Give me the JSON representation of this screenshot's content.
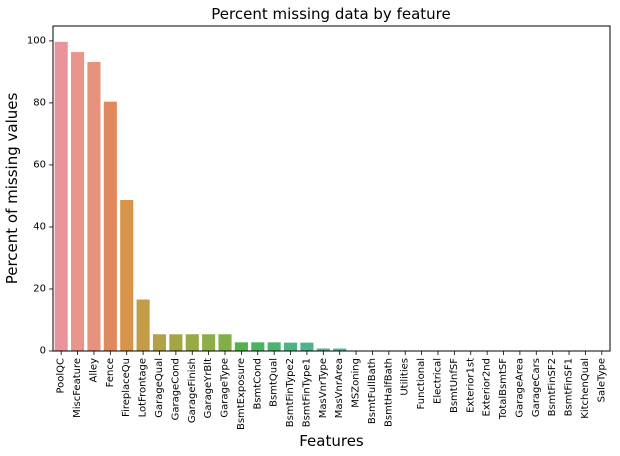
{
  "chart_data": {
    "type": "bar",
    "title": "Percent missing data by feature",
    "xlabel": "Features",
    "ylabel": "Percent of missing values",
    "ylim": [
      0,
      104.8
    ],
    "yticks": [
      0,
      20,
      40,
      60,
      80,
      100
    ],
    "grid": false,
    "categories": [
      "PoolQC",
      "MiscFeature",
      "Alley",
      "Fence",
      "FireplaceQu",
      "LotFrontage",
      "GarageQual",
      "GarageCond",
      "GarageFinish",
      "GarageYrBlt",
      "GarageType",
      "BsmtExposure",
      "BsmtCond",
      "BsmtQual",
      "BsmtFinType2",
      "BsmtFinType1",
      "MasVnrType",
      "MasVnrArea",
      "MSZoning",
      "BsmtFullBath",
      "BsmtHalfBath",
      "Utilities",
      "Functional",
      "Electrical",
      "BsmtUnfSF",
      "Exterior1st",
      "Exterior2nd",
      "TotalBsmtSF",
      "GarageArea",
      "GarageCars",
      "BsmtFinSF2",
      "BsmtFinSF1",
      "KitchenQual",
      "SaleType"
    ],
    "values": [
      99.7,
      96.4,
      93.2,
      80.4,
      48.7,
      16.6,
      5.4,
      5.4,
      5.4,
      5.4,
      5.4,
      2.8,
      2.8,
      2.8,
      2.7,
      2.7,
      0.8,
      0.8,
      0.14,
      0.07,
      0.07,
      0.07,
      0.07,
      0.03,
      0.03,
      0.03,
      0.03,
      0.03,
      0.03,
      0.03,
      0.03,
      0.03,
      0.03,
      0.03
    ],
    "colors": [
      "#e9949b",
      "#e9968a",
      "#e7927c",
      "#e0885e",
      "#d9944c",
      "#c49b46",
      "#b2a146",
      "#a5a546",
      "#99a946",
      "#8cad47",
      "#80b047",
      "#50b44a",
      "#4ab461",
      "#4cb372",
      "#4db380",
      "#4eb38b",
      "#4fb396",
      "#50b3a1",
      "#52b2ad",
      "#53b3b9",
      "#55b4c6",
      "#58b5d3",
      "#5cb3dd",
      "#66aee7",
      "#73a8ef",
      "#86a2f1",
      "#999bf0",
      "#ab95ef",
      "#bc8fee",
      "#cb8bed",
      "#db84e5",
      "#e687d8",
      "#e88bc7",
      "#e990b5"
    ]
  }
}
